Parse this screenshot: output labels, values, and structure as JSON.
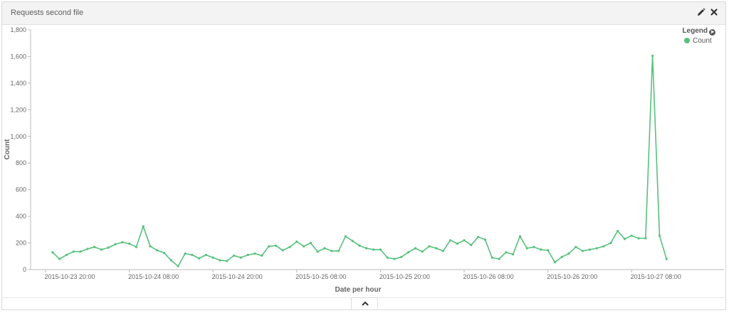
{
  "panel": {
    "title": "Requests second file",
    "edit_icon": "pencil-icon",
    "close_icon": "close-icon"
  },
  "legend": {
    "title": "Legend",
    "toggle_icon": "arrow-circle-right-icon",
    "items": [
      {
        "label": "Count",
        "color": "#57c17b"
      }
    ]
  },
  "footer": {
    "collapse_icon": "chevron-up-icon"
  },
  "chart_data": {
    "type": "line",
    "title": "",
    "xlabel": "Date per hour",
    "ylabel": "Count",
    "ylim": [
      0,
      1800
    ],
    "yticks": [
      0,
      200,
      400,
      600,
      800,
      1000,
      1200,
      1400,
      1600,
      1800
    ],
    "ytick_labels": [
      "0",
      "200",
      "400",
      "600",
      "800",
      "1,000",
      "1,200",
      "1,400",
      "1,600",
      "1,800"
    ],
    "xticks": [
      {
        "label": "2015-10-23 20:00",
        "hour": 0
      },
      {
        "label": "2015-10-24 08:00",
        "hour": 12
      },
      {
        "label": "2015-10-24 20:00",
        "hour": 24
      },
      {
        "label": "2015-10-25 08:00",
        "hour": 36
      },
      {
        "label": "2015-10-25 20:00",
        "hour": 48
      },
      {
        "label": "2015-10-26 08:00",
        "hour": 60
      },
      {
        "label": "2015-10-26 20:00",
        "hour": 72
      },
      {
        "label": "2015-10-27 08:00",
        "hour": 84
      }
    ],
    "grid": false,
    "legend_position": "top-right",
    "series": [
      {
        "name": "Count",
        "color": "#57c17b",
        "start": "2015-10-23 21:00",
        "interval": "1 hour",
        "values": [
          130,
          80,
          110,
          135,
          135,
          155,
          170,
          150,
          165,
          190,
          205,
          195,
          170,
          325,
          175,
          145,
          125,
          70,
          25,
          120,
          110,
          85,
          110,
          90,
          70,
          65,
          105,
          90,
          110,
          120,
          105,
          175,
          180,
          145,
          170,
          210,
          175,
          200,
          135,
          160,
          140,
          140,
          250,
          215,
          180,
          160,
          150,
          150,
          90,
          80,
          95,
          130,
          160,
          135,
          175,
          160,
          140,
          220,
          195,
          220,
          185,
          245,
          225,
          90,
          80,
          130,
          115,
          250,
          160,
          170,
          150,
          145,
          55,
          95,
          120,
          170,
          140,
          150,
          160,
          175,
          200,
          290,
          230,
          255,
          235,
          235,
          1605,
          255,
          80
        ]
      }
    ]
  }
}
